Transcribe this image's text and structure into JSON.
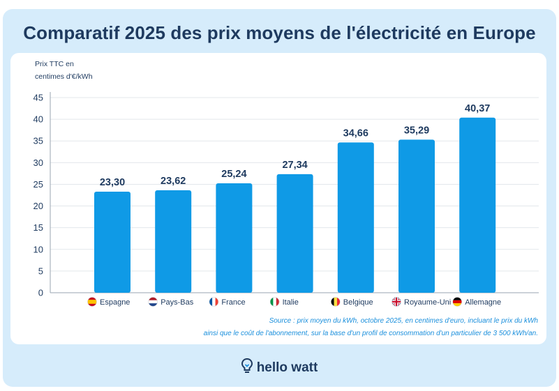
{
  "title": "Comparatif 2025 des prix moyens de l'électricité en Europe",
  "brand": "hello watt",
  "source_lines": [
    "Source : prix moyen du kWh, octobre 2025, en centimes d'euro, incluant le prix du kWh",
    "ainsi que le coût de l'abonnement, sur la base d'un profil de consommation d'un particulier de 3 500 kWh/an."
  ],
  "colors": {
    "bar": "#0f9ae6",
    "title": "#1e3a5f",
    "frame": "#d6ecfb",
    "source": "#1a8fdc"
  },
  "chart_data": {
    "type": "bar",
    "title": "Comparatif 2025 des prix moyens de l'électricité en Europe",
    "ylabel_lines": [
      "Prix TTC en",
      "centimes d'€/kWh"
    ],
    "xlabel": "",
    "ylim": [
      0,
      45
    ],
    "yticks": [
      0,
      5,
      10,
      15,
      20,
      25,
      30,
      35,
      40,
      45
    ],
    "grid": true,
    "categories": [
      "Espagne",
      "Pays-Bas",
      "France",
      "Italie",
      "Belgique",
      "Royaume-Uni",
      "Allemagne"
    ],
    "flags": [
      "spain-flag-icon",
      "netherlands-flag-icon",
      "france-flag-icon",
      "italy-flag-icon",
      "belgium-flag-icon",
      "uk-flag-icon",
      "germany-flag-icon"
    ],
    "values": [
      23.3,
      23.62,
      25.24,
      27.34,
      34.66,
      35.29,
      40.37
    ],
    "value_labels": [
      "23,30",
      "23,62",
      "25,24",
      "27,34",
      "34,66",
      "35,29",
      "40,37"
    ]
  }
}
